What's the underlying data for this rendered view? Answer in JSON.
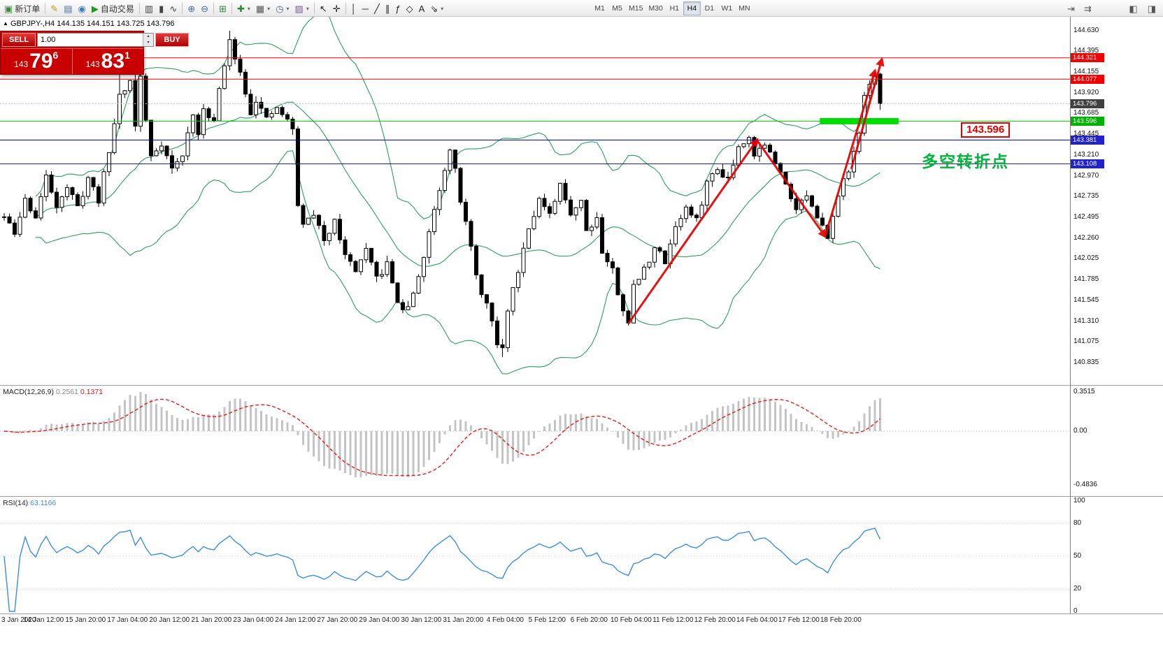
{
  "seed": 11,
  "toolbar": {
    "items": [
      {
        "name": "new-order-button",
        "icon": "new-order-icon",
        "glyph": "▣",
        "color": "#3a8a3a",
        "label": "新订单"
      },
      {
        "name": "separator"
      },
      {
        "name": "metaeditor-button",
        "icon": "metaeditor-icon",
        "glyph": "✎",
        "color": "#c09a10"
      },
      {
        "name": "market-watch-button",
        "icon": "market-watch-icon",
        "glyph": "▤",
        "color": "#4a6fa5"
      },
      {
        "name": "navigator-button",
        "icon": "navigator-icon",
        "glyph": "◉",
        "color": "#3b7dbf"
      },
      {
        "name": "autotrading-button",
        "icon": "autotrading-play-icon",
        "glyph": "▶",
        "color": "#16a216",
        "label": "自动交易"
      },
      {
        "name": "separator"
      },
      {
        "name": "bar-chart-button",
        "icon": "bar-chart-icon",
        "glyph": "▥",
        "color": "#444444"
      },
      {
        "name": "candlestick-chart-button",
        "icon": "candlestick-icon",
        "glyph": "▮",
        "color": "#444444"
      },
      {
        "name": "line-chart-button",
        "icon": "line-chart-icon",
        "glyph": "∿",
        "color": "#444444"
      },
      {
        "name": "separator"
      },
      {
        "name": "zoom-in-button",
        "icon": "zoom-in-icon",
        "glyph": "⊕",
        "color": "#3b6ea5"
      },
      {
        "name": "zoom-out-button",
        "icon": "zoom-out-icon",
        "glyph": "⊖",
        "color": "#3b6ea5"
      },
      {
        "name": "separator"
      },
      {
        "name": "tile-windows-button",
        "icon": "tile-windows-icon",
        "glyph": "⊞",
        "color": "#3f7f3f"
      },
      {
        "name": "separator"
      },
      {
        "name": "new-chart-button",
        "icon": "new-chart-icon",
        "glyph": "✚",
        "color": "#2e8b2e",
        "caret": true
      },
      {
        "name": "profiles-button",
        "icon": "profiles-icon",
        "glyph": "▦",
        "color": "#555555",
        "caret": true
      },
      {
        "name": "period-button",
        "icon": "clock-icon",
        "glyph": "◷",
        "color": "#3b6ea5",
        "caret": true
      },
      {
        "name": "template-button",
        "icon": "template-icon",
        "glyph": "▨",
        "color": "#7a5fa0",
        "caret": true
      },
      {
        "name": "separator"
      },
      {
        "name": "cursor-button",
        "icon": "cursor-icon",
        "glyph": "↖",
        "color": "#222222"
      },
      {
        "name": "crosshair-button",
        "icon": "crosshair-icon",
        "glyph": "✛",
        "color": "#222222"
      },
      {
        "name": "separator"
      },
      {
        "name": "vertical-line-button",
        "icon": "vertical-line-icon",
        "glyph": "│",
        "color": "#222222"
      },
      {
        "name": "horizontal-line-button",
        "icon": "horizontal-line-icon",
        "glyph": "─",
        "color": "#222222"
      },
      {
        "name": "trendline-button",
        "icon": "trendline-icon",
        "glyph": "╱",
        "color": "#222222"
      },
      {
        "name": "channel-button",
        "icon": "channel-icon",
        "glyph": "∥",
        "color": "#222222"
      },
      {
        "name": "fibonacci-button",
        "icon": "fibonacci-icon",
        "glyph": "ƒ",
        "color": "#222222"
      },
      {
        "name": "shapes-button",
        "icon": "shapes-icon",
        "glyph": "◇",
        "color": "#222222"
      },
      {
        "name": "text-button",
        "icon": "text-icon",
        "glyph": "A",
        "color": "#222222"
      },
      {
        "name": "arrows-button",
        "icon": "arrow-icon",
        "glyph": "⇘",
        "color": "#222222",
        "caret": true
      }
    ],
    "timeframes": [
      "M1",
      "M5",
      "M15",
      "M30",
      "H1",
      "H4",
      "D1",
      "W1",
      "MN"
    ],
    "active_timeframe": "H4",
    "chart_group_icons": [
      {
        "name": "chart-shift-button",
        "icon": "chart-shift-icon",
        "glyph": "⇥",
        "color": "#555555"
      },
      {
        "name": "autoscroll-button",
        "icon": "autoscroll-icon",
        "glyph": "⇉",
        "color": "#555555"
      }
    ],
    "right_icons": [
      {
        "name": "dock-button",
        "icon": "dock-icon",
        "glyph": "◧",
        "color": "#555555"
      },
      {
        "name": "layout-button",
        "icon": "layout-icon",
        "glyph": "◨",
        "color": "#555555"
      }
    ]
  },
  "symbol_bar": {
    "collapse_glyph": "▲",
    "text": "GBPJPY-,H4 144.135 144.151 143.725 143.796"
  },
  "trade_panel": {
    "sell_label": "SELL",
    "buy_label": "BUY",
    "volume": "1.00",
    "spin_up_glyph": "▴",
    "spin_down_glyph": "▾",
    "sell_prefix": "143",
    "sell_big": "79",
    "sell_sup": "6",
    "buy_prefix": "143",
    "buy_big": "83",
    "buy_sup": "1"
  },
  "annotations": {
    "turning_point_text": "多空转折点",
    "turning_point_color": "#00b33c",
    "level_label": "143.596"
  },
  "price_axis": {
    "ticks": [
      "144.630",
      "144.395",
      "144.155",
      "143.920",
      "143.685",
      "143.445",
      "143.210",
      "142.970",
      "142.735",
      "142.495",
      "142.260",
      "142.025",
      "141.785",
      "141.545",
      "141.310",
      "141.075",
      "140.835"
    ],
    "badges": [
      {
        "text": "144.321",
        "price": 144.321,
        "bg": "#f20000"
      },
      {
        "text": "144.077",
        "price": 144.077,
        "bg": "#f20000"
      },
      {
        "text": "143.796",
        "price": 143.796,
        "bg": "#404040"
      },
      {
        "text": "143.596",
        "price": 143.596,
        "bg": "#00b200"
      },
      {
        "text": "143.381",
        "price": 143.381,
        "bg": "#2222cc"
      },
      {
        "text": "143.108",
        "price": 143.108,
        "bg": "#2222cc"
      }
    ]
  },
  "hlines": [
    {
      "price": 144.321,
      "color": "#f20000",
      "dash": ""
    },
    {
      "price": 144.077,
      "color": "#f20000",
      "dash": ""
    },
    {
      "price": 143.796,
      "color": "#c0c0c0",
      "dash": "2 2"
    },
    {
      "price": 143.596,
      "color": "#00c800",
      "dash": ""
    },
    {
      "price": 143.381,
      "color": "#000099",
      "dash": ""
    },
    {
      "price": 143.108,
      "color": "#26266e",
      "dash": ""
    }
  ],
  "green_zone": {
    "price": 143.596,
    "bar_start": 155.5,
    "bar_end": 170.5,
    "thickness": 9,
    "color": "#00dc00"
  },
  "arrows": {
    "color": "#e60000",
    "segments": [
      [
        [
          119,
          141.28
        ],
        [
          143.5,
          143.38
        ]
      ],
      [
        [
          143.5,
          143.38
        ],
        [
          156.5,
          142.28
        ]
      ],
      [
        [
          156.5,
          142.28
        ],
        [
          166,
          144.17
        ]
      ],
      [
        [
          161.5,
          143.05
        ],
        [
          167.3,
          144.3
        ]
      ]
    ]
  },
  "macd_pane": {
    "label": "MACD(12,26,9)",
    "value_main": "0.2561",
    "value_signal": "0.1371",
    "axis": [
      {
        "text": "0.3515",
        "value": 0.3515
      },
      {
        "text": "0.00",
        "value": 0
      },
      {
        "text": "-0.4836",
        "value": -0.4836
      }
    ],
    "histogram_color": "#c4c4c4",
    "signal_color": "#e02020"
  },
  "rsi_pane": {
    "label": "RSI(14)",
    "value": "63.1166",
    "axis": [
      {
        "text": "100",
        "value": 100
      },
      {
        "text": "80",
        "value": 80
      },
      {
        "text": "50",
        "value": 50
      },
      {
        "text": "20",
        "value": 20
      },
      {
        "text": "0",
        "value": 0
      }
    ],
    "levels": [
      80,
      50,
      20
    ],
    "line_color": "#3e8ede"
  },
  "time_axis": {
    "labels": [
      "3 Jan 2020",
      "14 Jan 12:00",
      "15 Jan 20:00",
      "17 Jan 04:00",
      "20 Jan 12:00",
      "21 Jan 20:00",
      "23 Jan 04:00",
      "24 Jan 12:00",
      "27 Jan 20:00",
      "29 Jan 04:00",
      "30 Jan 12:00",
      "31 Jan 20:00",
      "4 Feb 04:00",
      "5 Feb 12:00",
      "6 Feb 20:00",
      "10 Feb 04:00",
      "11 Feb 12:00",
      "12 Feb 20:00",
      "14 Feb 04:00",
      "17 Feb 12:00",
      "18 Feb 20:00"
    ]
  },
  "chart_data": {
    "type": "candlestick",
    "symbol": "GBPJPY-",
    "timeframe": "H4",
    "title": "GBPJPY-,H4",
    "current_ohlc": {
      "open": 144.135,
      "high": 144.151,
      "low": 143.725,
      "close": 143.796
    },
    "bid": 143.796,
    "ask": 143.831,
    "visible_price_range": [
      140.835,
      144.63
    ],
    "bars": 168,
    "close_waypoints": [
      [
        0,
        142.5
      ],
      [
        2,
        142.3
      ],
      [
        4,
        142.7
      ],
      [
        6,
        142.5
      ],
      [
        8,
        142.95
      ],
      [
        10,
        142.65
      ],
      [
        12,
        142.85
      ],
      [
        14,
        142.6
      ],
      [
        16,
        142.95
      ],
      [
        18,
        142.7
      ],
      [
        20,
        143.25
      ],
      [
        22,
        143.9
      ],
      [
        24,
        144.05
      ],
      [
        25,
        143.55
      ],
      [
        26,
        144.1
      ],
      [
        27,
        143.6
      ],
      [
        28,
        143.2
      ],
      [
        30,
        143.35
      ],
      [
        32,
        143.05
      ],
      [
        34,
        143.2
      ],
      [
        36,
        143.7
      ],
      [
        37,
        143.4
      ],
      [
        38,
        143.75
      ],
      [
        40,
        143.6
      ],
      [
        41,
        143.95
      ],
      [
        43,
        144.5
      ],
      [
        44,
        144.35
      ],
      [
        45,
        144.15
      ],
      [
        46,
        143.95
      ],
      [
        47,
        143.7
      ],
      [
        48,
        143.85
      ],
      [
        50,
        143.6
      ],
      [
        52,
        143.75
      ],
      [
        54,
        143.6
      ],
      [
        55,
        143.5
      ],
      [
        56,
        142.65
      ],
      [
        57,
        142.4
      ],
      [
        59,
        142.55
      ],
      [
        61,
        142.2
      ],
      [
        63,
        142.5
      ],
      [
        65,
        142.05
      ],
      [
        67,
        141.9
      ],
      [
        69,
        142.1
      ],
      [
        71,
        141.8
      ],
      [
        73,
        141.95
      ],
      [
        75,
        141.55
      ],
      [
        76,
        141.4
      ],
      [
        78,
        141.6
      ],
      [
        80,
        142.05
      ],
      [
        82,
        142.6
      ],
      [
        84,
        143.05
      ],
      [
        85,
        143.3
      ],
      [
        86,
        143.1
      ],
      [
        87,
        142.7
      ],
      [
        89,
        142.15
      ],
      [
        90,
        141.8
      ],
      [
        92,
        141.5
      ],
      [
        94,
        141.05
      ],
      [
        95,
        140.98
      ],
      [
        96,
        141.45
      ],
      [
        98,
        141.9
      ],
      [
        100,
        142.4
      ],
      [
        102,
        142.7
      ],
      [
        104,
        142.5
      ],
      [
        106,
        142.85
      ],
      [
        108,
        142.55
      ],
      [
        110,
        142.7
      ],
      [
        111,
        142.35
      ],
      [
        113,
        142.5
      ],
      [
        114,
        142.1
      ],
      [
        116,
        141.9
      ],
      [
        117,
        141.6
      ],
      [
        119,
        141.32
      ],
      [
        120,
        141.7
      ],
      [
        122,
        141.9
      ],
      [
        124,
        142.15
      ],
      [
        126,
        142.0
      ],
      [
        128,
        142.4
      ],
      [
        130,
        142.6
      ],
      [
        132,
        142.45
      ],
      [
        134,
        142.9
      ],
      [
        136,
        143.05
      ],
      [
        138,
        142.95
      ],
      [
        140,
        143.3
      ],
      [
        142,
        143.45
      ],
      [
        143,
        143.2
      ],
      [
        145,
        143.35
      ],
      [
        147,
        143.1
      ],
      [
        149,
        142.9
      ],
      [
        151,
        142.6
      ],
      [
        153,
        142.75
      ],
      [
        155,
        142.45
      ],
      [
        157,
        142.3
      ],
      [
        158,
        142.55
      ],
      [
        160,
        142.9
      ],
      [
        161,
        143.05
      ],
      [
        162,
        143.25
      ],
      [
        163,
        143.5
      ],
      [
        164,
        143.85
      ],
      [
        165,
        144.05
      ],
      [
        166,
        144.12
      ],
      [
        167,
        143.8
      ]
    ],
    "overrides": {
      "22": {
        "h": 144.28
      },
      "26": {
        "h": 144.32
      },
      "43": {
        "h": 144.63
      },
      "95": {
        "l": 140.9
      },
      "119": {
        "l": 141.26
      },
      "157": {
        "l": 142.26
      },
      "166": {
        "h": 144.16
      },
      "167": {
        "o": 144.135,
        "h": 144.151,
        "l": 143.725,
        "c": 143.796
      }
    },
    "bollinger": {
      "period": 20,
      "deviation": 2,
      "color": "#2f9e5e"
    },
    "macd": {
      "fast": 12,
      "slow": 26,
      "signal": 9,
      "current_main": 0.2561,
      "current_signal": 0.1371,
      "scale": [
        -0.4836,
        0.3515
      ]
    },
    "rsi": {
      "period": 14,
      "current": 63.1166
    }
  }
}
